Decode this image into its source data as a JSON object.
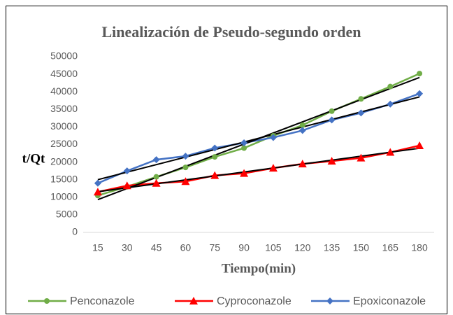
{
  "chart_data": {
    "type": "line",
    "title": "Linealización de Pseudo-segundo orden",
    "xlabel": "Tiempo(min)",
    "ylabel": "t/Qt",
    "categories": [
      15,
      30,
      45,
      60,
      75,
      90,
      105,
      120,
      135,
      150,
      165,
      180
    ],
    "series": [
      {
        "name": "Penconazole",
        "color": "#70ad47",
        "marker": "circle",
        "values": [
          10500,
          13000,
          15800,
          18500,
          21500,
          24000,
          27500,
          30500,
          34500,
          38000,
          41500,
          45200
        ]
      },
      {
        "name": "Cyproconazole",
        "color": "#ff0000",
        "marker": "triangle",
        "values": [
          11500,
          13300,
          14000,
          14500,
          16200,
          16800,
          18300,
          19500,
          20300,
          21200,
          22800,
          24700
        ]
      },
      {
        "name": "Epoxiconazole",
        "color": "#4472c4",
        "marker": "diamond",
        "values": [
          14000,
          17500,
          20700,
          21700,
          24000,
          25500,
          27000,
          29000,
          32000,
          34000,
          36500,
          39500
        ]
      }
    ],
    "trendline": "linear",
    "ylim": [
      0,
      50000
    ],
    "yticks": [
      0,
      5000,
      10000,
      15000,
      20000,
      25000,
      30000,
      35000,
      40000,
      45000,
      50000
    ],
    "grid": false,
    "legend": "bottom"
  }
}
